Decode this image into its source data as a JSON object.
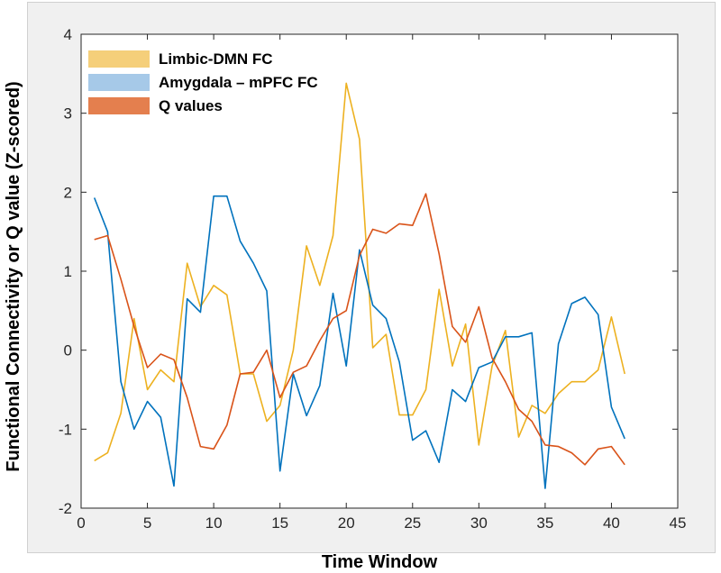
{
  "chart_data": {
    "type": "line",
    "xlabel": "Time Window",
    "ylabel": "Functional Connectivity or Q value (Z-scored)",
    "xlim": [
      0,
      45
    ],
    "ylim": [
      -2,
      4
    ],
    "xticks": [
      0,
      5,
      10,
      15,
      20,
      25,
      30,
      35,
      40,
      45
    ],
    "yticks": [
      -2,
      -1,
      0,
      1,
      2,
      3,
      4
    ],
    "grid": false,
    "legend_position": "top-left",
    "x": [
      1,
      2,
      3,
      4,
      5,
      6,
      7,
      8,
      9,
      10,
      11,
      12,
      13,
      14,
      15,
      16,
      17,
      18,
      19,
      20,
      21,
      22,
      23,
      24,
      25,
      26,
      27,
      28,
      29,
      30,
      31,
      32,
      33,
      34,
      35,
      36,
      37,
      38,
      39,
      40,
      41
    ],
    "series": [
      {
        "name": "Limbic-DMN FC",
        "color": "#edb120",
        "values": [
          -1.4,
          -1.3,
          -0.8,
          0.4,
          -0.5,
          -0.25,
          -0.4,
          1.1,
          0.55,
          0.82,
          0.7,
          -0.3,
          -0.3,
          -0.9,
          -0.7,
          0.0,
          1.32,
          0.82,
          1.45,
          3.38,
          2.67,
          0.03,
          0.2,
          -0.82,
          -0.82,
          -0.5,
          0.77,
          -0.2,
          0.33,
          -1.2,
          -0.2,
          0.25,
          -1.1,
          -0.7,
          -0.8,
          -0.55,
          -0.4,
          -0.4,
          -0.25,
          0.42,
          -0.3
        ]
      },
      {
        "name": "Amygdala – mPFC FC",
        "color": "#0072bd",
        "values": [
          1.93,
          1.5,
          -0.4,
          -1.0,
          -0.65,
          -0.85,
          -1.72,
          0.65,
          0.48,
          1.95,
          1.95,
          1.38,
          1.1,
          0.75,
          -1.53,
          -0.3,
          -0.83,
          -0.45,
          0.72,
          -0.2,
          1.27,
          0.57,
          0.4,
          -0.15,
          -1.14,
          -1.02,
          -1.42,
          -0.5,
          -0.65,
          -0.22,
          -0.15,
          0.17,
          0.17,
          0.22,
          -1.75,
          0.08,
          0.59,
          0.67,
          0.45,
          -0.72,
          -1.12
        ]
      },
      {
        "name": "Q values",
        "color": "#d95319",
        "values": [
          1.4,
          1.45,
          0.9,
          0.3,
          -0.22,
          -0.05,
          -0.12,
          -0.6,
          -1.22,
          -1.25,
          -0.95,
          -0.3,
          -0.28,
          0.0,
          -0.6,
          -0.28,
          -0.2,
          0.12,
          0.4,
          0.5,
          1.2,
          1.53,
          1.48,
          1.6,
          1.58,
          1.98,
          1.22,
          0.3,
          0.1,
          0.55,
          -0.1,
          -0.4,
          -0.75,
          -0.9,
          -1.2,
          -1.22,
          -1.3,
          -1.45,
          -1.25,
          -1.22,
          -1.45
        ]
      }
    ]
  }
}
